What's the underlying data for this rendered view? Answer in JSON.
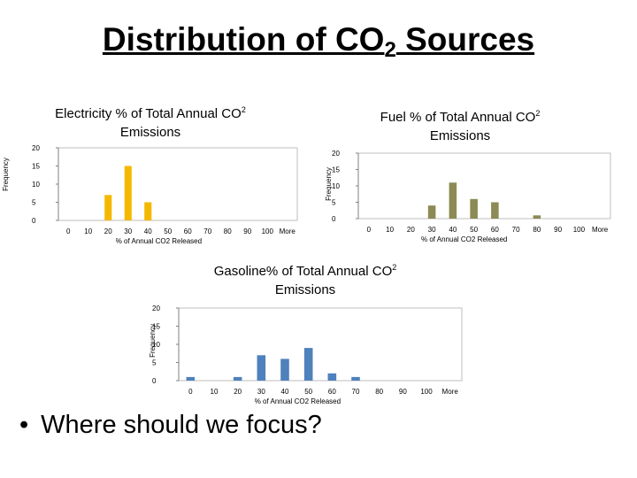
{
  "slide": {
    "title_main": "Distribution of CO",
    "title_sub": "2",
    "title_tail": " Sources",
    "bullet": "Where should we focus?"
  },
  "chart_data": [
    {
      "type": "bar",
      "title": "Electricity % of Total Annual CO",
      "title_sub": "2",
      "title_line2": "Emissions",
      "xlabel": "% of Annual CO2 Released",
      "ylabel": "Frequency",
      "categories": [
        "0",
        "10",
        "20",
        "30",
        "40",
        "50",
        "60",
        "70",
        "80",
        "90",
        "100",
        "More"
      ],
      "values": [
        0,
        0,
        7,
        15,
        5,
        0,
        0,
        0,
        0,
        0,
        0,
        0
      ],
      "yticks": [
        "0",
        "5",
        "10",
        "15",
        "20"
      ],
      "ylim": [
        0,
        20
      ],
      "grid": false,
      "color": "#f5b800"
    },
    {
      "type": "bar",
      "title": "Fuel % of Total Annual CO",
      "title_sub": "2",
      "title_line2": "Emissions",
      "xlabel": "% of Annual CO2 Released",
      "ylabel": "Frequency",
      "categories": [
        "0",
        "10",
        "20",
        "30",
        "40",
        "50",
        "60",
        "70",
        "80",
        "90",
        "100",
        "More"
      ],
      "values": [
        0,
        0,
        0,
        4,
        11,
        6,
        5,
        0,
        1,
        0,
        0,
        0
      ],
      "yticks": [
        "0",
        "5",
        "10",
        "15",
        "20"
      ],
      "ylim": [
        0,
        20
      ],
      "grid": false,
      "color": "#8c8a55"
    },
    {
      "type": "bar",
      "title": "Gasoline% of Total Annual CO",
      "title_sub": "2",
      "title_line2": "Emissions",
      "xlabel": "% of Annual CO2 Released",
      "ylabel": "Frequency",
      "categories": [
        "0",
        "10",
        "20",
        "30",
        "40",
        "50",
        "60",
        "70",
        "80",
        "90",
        "100",
        "More"
      ],
      "values": [
        1,
        0,
        1,
        7,
        6,
        9,
        2,
        1,
        0,
        0,
        0,
        0
      ],
      "yticks": [
        "0",
        "5",
        "10",
        "15",
        "20"
      ],
      "ylim": [
        0,
        20
      ],
      "grid": false,
      "color": "#4f81bd"
    }
  ]
}
